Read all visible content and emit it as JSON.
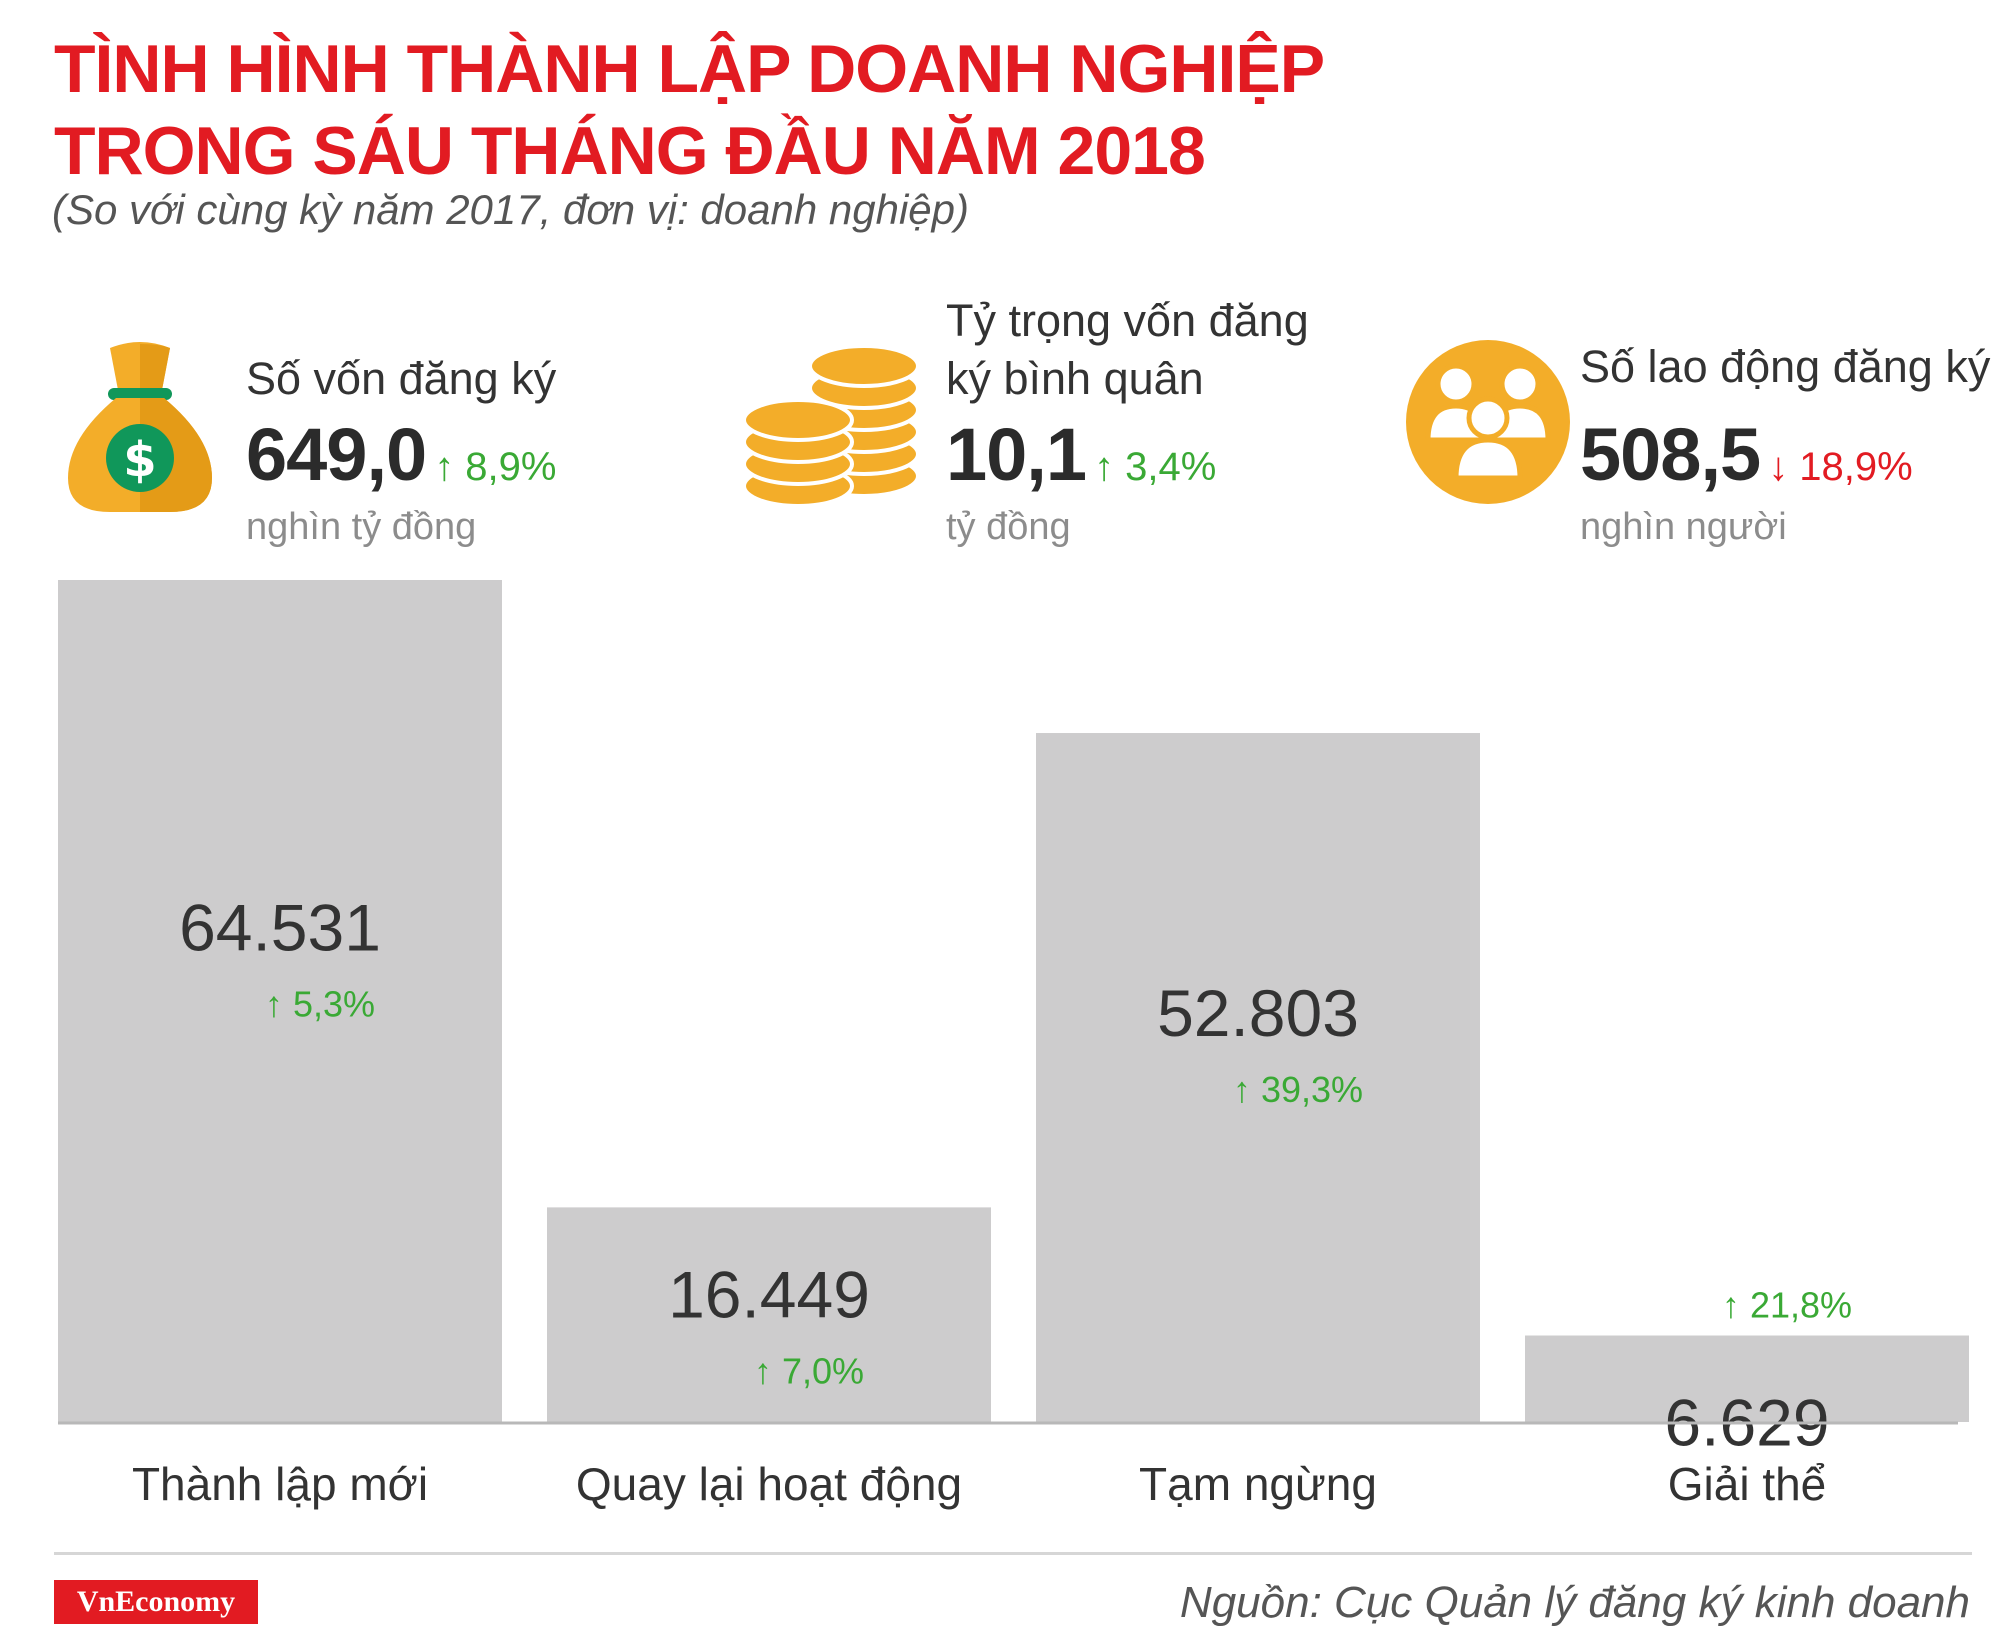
{
  "header": {
    "title_line1": "TÌNH HÌNH THÀNH LẬP DOANH NGHIỆP",
    "title_line2": "TRONG SÁU THÁNG ĐẦU NĂM 2018",
    "subtitle": "(So với cùng kỳ năm 2017, đơn vị: doanh nghiệp)"
  },
  "kpis": [
    {
      "icon": "money-bag-icon",
      "label_line1": "Số vốn đăng ký",
      "label_line2": "",
      "value": "649,0",
      "change": "↑ 8,9%",
      "unit": "nghìn tỷ đồng"
    },
    {
      "icon": "coins-stack-icon",
      "label_line1": "Tỷ trọng vốn đăng",
      "label_line2": "ký bình quân",
      "value": "10,1",
      "change": "↑ 3,4%",
      "unit": "tỷ đồng"
    },
    {
      "icon": "people-group-icon",
      "label_line1": "Số lao động đăng ký",
      "label_line2": "",
      "value": "508,5",
      "change": "↓ 18,9%",
      "unit": "nghìn người"
    }
  ],
  "colors": {
    "title": "#e21b22",
    "bar": "#cdcccd",
    "increase": "#3aa935",
    "decrease": "#e21b22",
    "icon_gold": "#f3ad29",
    "icon_gold_dark": "#e49b17",
    "icon_green": "#10975a"
  },
  "chart_data": {
    "type": "bar",
    "categories": [
      "Thành lập mới",
      "Quay lại hoạt động",
      "Tạm ngừng",
      "Giải thể"
    ],
    "values": [
      64531,
      16449,
      52803,
      6629
    ],
    "value_labels": [
      "64.531",
      "16.449",
      "52.803",
      "6.629"
    ],
    "change_labels": [
      "↑ 5,3%",
      "↑ 7,0%",
      "↑ 39,3%",
      "↑ 21,8%"
    ],
    "change_direction": [
      "up",
      "up",
      "up",
      "up"
    ],
    "ylim": [
      0,
      64531
    ],
    "grid": false,
    "legend": "none"
  },
  "footer": {
    "brand": "VnEconomy",
    "source": "Nguồn: Cục Quản lý đăng ký kinh doanh"
  }
}
